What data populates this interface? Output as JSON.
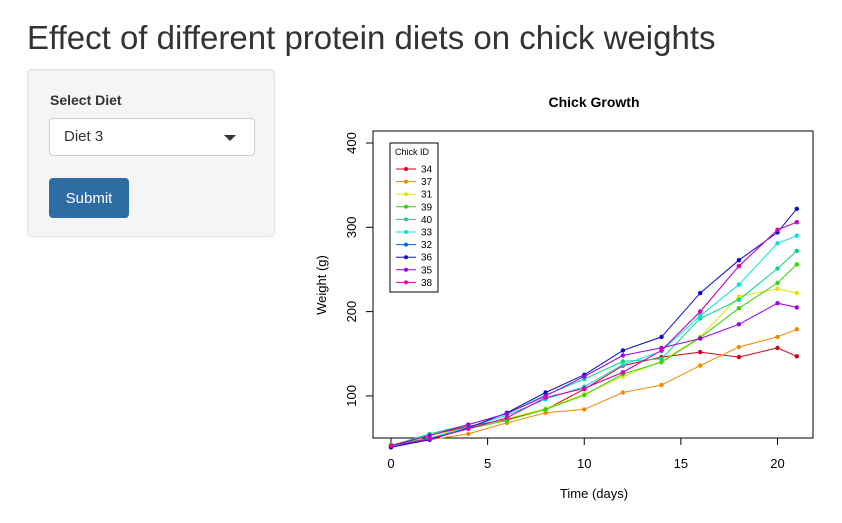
{
  "page": {
    "title": "Effect of different protein diets on chick weights"
  },
  "sidebar": {
    "select_label": "Select Diet",
    "select_value": "Diet 3",
    "submit_label": "Submit"
  },
  "chart_data": {
    "type": "line",
    "title": "Chick Growth",
    "xlabel": "Time (days)",
    "ylabel": "Weight (g)",
    "xlim": [
      0,
      21
    ],
    "ylim": [
      40,
      400
    ],
    "x_ticks": [
      0,
      5,
      10,
      15,
      20
    ],
    "y_ticks": [
      100,
      200,
      300,
      400
    ],
    "grid": false,
    "legend": {
      "title": "Chick ID",
      "position": "top-left"
    },
    "x": [
      0,
      2,
      4,
      6,
      8,
      10,
      12,
      14,
      16,
      18,
      20,
      21
    ],
    "series": [
      {
        "name": "34",
        "color": "#d1001c",
        "values": [
          41,
          53,
          64,
          72,
          84,
          108,
          136,
          146,
          152,
          146,
          157,
          147
        ]
      },
      {
        "name": "37",
        "color": "#f08a00",
        "values": [
          39,
          48,
          55,
          68,
          80,
          84,
          104,
          113,
          136,
          158,
          170,
          179
        ]
      },
      {
        "name": "31",
        "color": "#e3e300",
        "values": [
          42,
          53,
          62,
          73,
          85,
          102,
          123,
          141,
          170,
          218,
          227,
          222
        ]
      },
      {
        "name": "39",
        "color": "#33d600",
        "values": [
          42,
          50,
          61,
          71,
          84,
          101,
          126,
          140,
          169,
          204,
          234,
          256
        ]
      },
      {
        "name": "40",
        "color": "#00d982",
        "values": [
          41,
          55,
          66,
          79,
          101,
          120,
          141,
          144,
          192,
          214,
          251,
          272
        ]
      },
      {
        "name": "33",
        "color": "#00e2e2",
        "values": [
          39,
          50,
          63,
          77,
          96,
          111,
          137,
          153,
          195,
          232,
          281,
          290
        ]
      },
      {
        "name": "32",
        "color": "#0064e6",
        "values": [
          41,
          49,
          61,
          74,
          98,
          109,
          128,
          154,
          200,
          254,
          297,
          306
        ]
      },
      {
        "name": "36",
        "color": "#0a0acc",
        "values": [
          39,
          48,
          62,
          80,
          104,
          125,
          154,
          170,
          222,
          261,
          294,
          322
        ]
      },
      {
        "name": "35",
        "color": "#9c00e6",
        "values": [
          41,
          53,
          66,
          79,
          100,
          123,
          148,
          157,
          168,
          185,
          210,
          205
        ]
      },
      {
        "name": "38",
        "color": "#e000b3",
        "values": [
          41,
          49,
          61,
          74,
          98,
          109,
          128,
          154,
          200,
          254,
          297,
          306
        ]
      }
    ]
  }
}
